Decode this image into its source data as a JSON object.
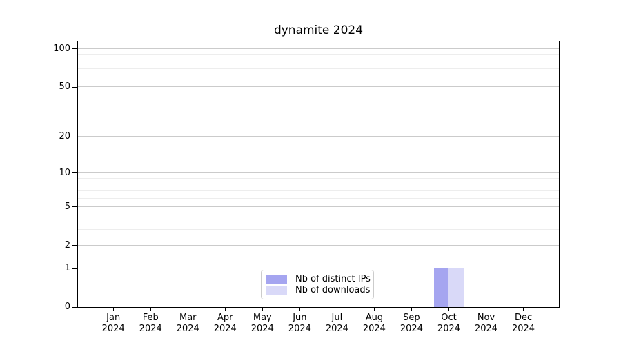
{
  "figure": {
    "title": "dynamite 2024"
  },
  "chart_data": {
    "type": "bar",
    "title": "dynamite 2024",
    "xlabel": "",
    "ylabel": "",
    "yscale": "log1p",
    "ylim": [
      0,
      114
    ],
    "grid": true,
    "y_major_ticks": [
      0,
      1,
      2,
      5,
      10,
      20,
      50,
      100
    ],
    "y_minor_ticks": [
      3,
      4,
      6,
      7,
      8,
      9,
      30,
      40,
      60,
      70,
      80,
      90
    ],
    "categories": [
      "Jan",
      "Feb",
      "Mar",
      "Apr",
      "May",
      "Jun",
      "Jul",
      "Aug",
      "Sep",
      "Oct",
      "Nov",
      "Dec"
    ],
    "category_year": "2024",
    "series": [
      {
        "name": "Nb of distinct IPs",
        "color": "#a5a5f0",
        "values": [
          0,
          0,
          0,
          0,
          0,
          0,
          0,
          0,
          0,
          1,
          0,
          0
        ]
      },
      {
        "name": "Nb of downloads",
        "color": "#d9d9f8",
        "values": [
          0,
          0,
          0,
          0,
          0,
          0,
          0,
          0,
          0,
          1,
          0,
          0
        ]
      }
    ],
    "legend": {
      "position": "lower center",
      "entries": [
        "Nb of distinct IPs",
        "Nb of downloads"
      ]
    },
    "colors": {
      "grid_major": "#cbcbcb",
      "grid_minor": "#ededed",
      "spine": "#000000",
      "background": "#ffffff"
    }
  }
}
